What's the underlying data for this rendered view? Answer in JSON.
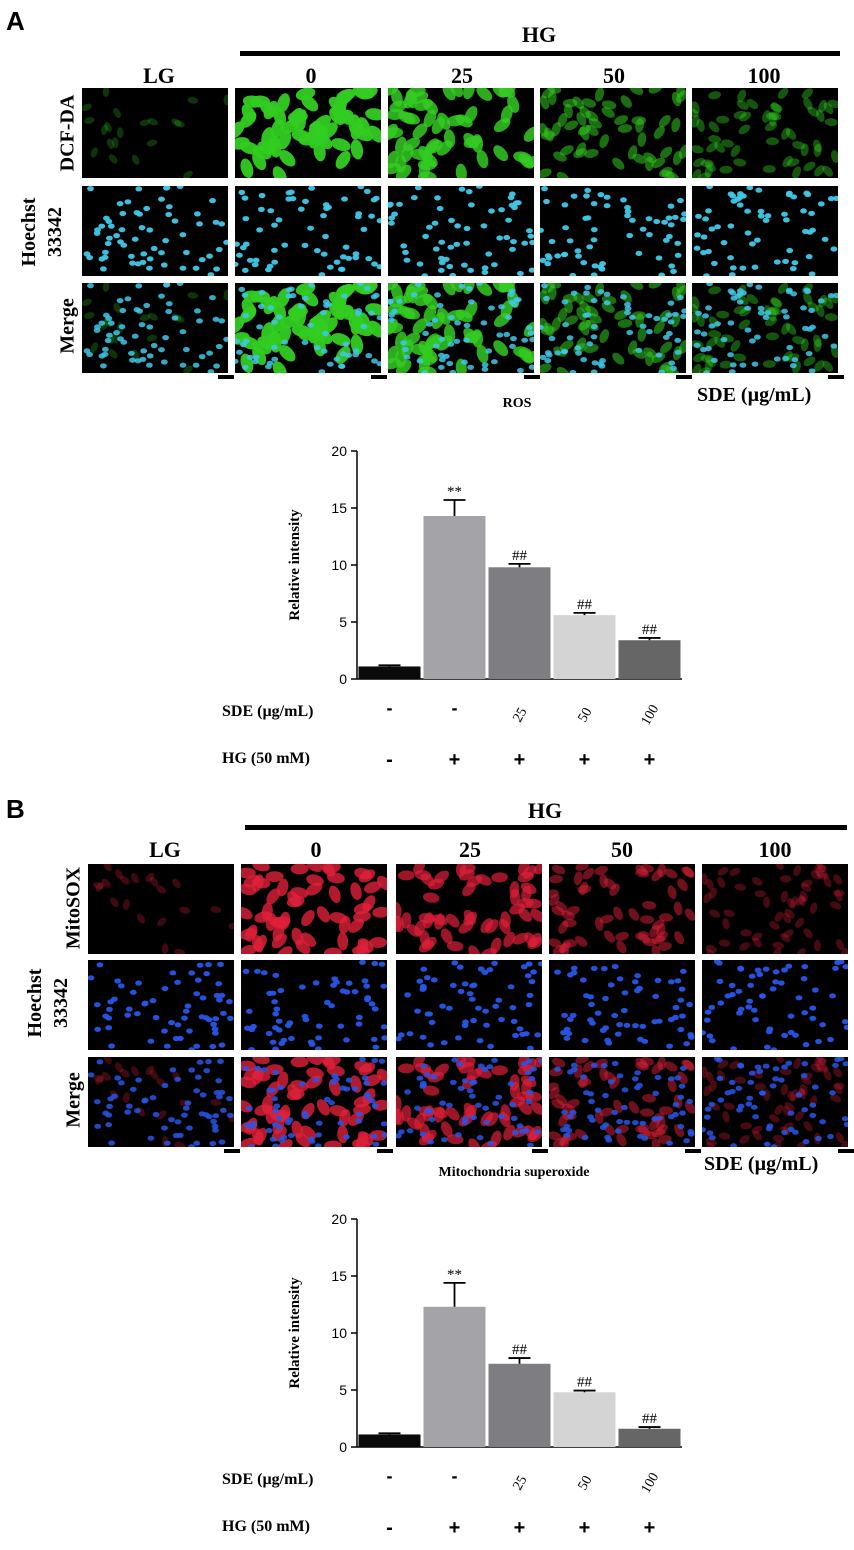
{
  "panels": [
    {
      "label": "A",
      "group_label": "HG",
      "columns": [
        "LG",
        "0",
        "25",
        "50",
        "100"
      ],
      "rows": [
        "DCF-DA",
        "Hoechst 33342",
        "Merge"
      ],
      "caption": "ROS",
      "sde_label": "SDE (µg/mL)",
      "stain_colors": {
        "probe": "#33cc22",
        "nucleus": "#3fc8e8"
      }
    },
    {
      "label": "B",
      "group_label": "HG",
      "columns": [
        "LG",
        "0",
        "25",
        "50",
        "100"
      ],
      "rows": [
        "MitoSOX",
        "Hoechst 33342",
        "Merge"
      ],
      "caption": "Mitochondria superoxide",
      "sde_label": "SDE (µg/mL)",
      "stain_colors": {
        "probe": "#e0203a",
        "nucleus": "#2855e8"
      }
    }
  ],
  "chart_data": [
    {
      "type": "bar",
      "title": "",
      "ylabel": "Relative intensity",
      "ylim": [
        0,
        20
      ],
      "yticks": [
        "0",
        "5",
        "10",
        "15",
        "20"
      ],
      "values": [
        1.1,
        14.3,
        9.8,
        5.6,
        3.4
      ],
      "errors": [
        0.1,
        1.4,
        0.3,
        0.2,
        0.2
      ],
      "annotations": [
        "",
        "**",
        "##",
        "##",
        "##"
      ],
      "colors": [
        "#0a0a0a",
        "#a3a3a8",
        "#7e7e82",
        "#d4d4d4",
        "#666666"
      ],
      "row_labels": [
        "SDE (µg/mL)",
        "HG (50 mM)"
      ],
      "sde_row": [
        "-",
        "-",
        "25",
        "50",
        "100"
      ],
      "hg_row": [
        "-",
        "+",
        "+",
        "+",
        "+"
      ]
    },
    {
      "type": "bar",
      "title": "",
      "ylabel": "Relative intensity",
      "ylim": [
        0,
        20
      ],
      "yticks": [
        "0",
        "5",
        "10",
        "15",
        "20"
      ],
      "values": [
        1.1,
        12.3,
        7.3,
        4.8,
        1.6
      ],
      "errors": [
        0.1,
        2.1,
        0.5,
        0.15,
        0.15
      ],
      "annotations": [
        "",
        "**",
        "##",
        "##",
        "##"
      ],
      "colors": [
        "#0a0a0a",
        "#a3a3a8",
        "#7e7e82",
        "#d4d4d4",
        "#666666"
      ],
      "row_labels": [
        "SDE (µg/mL)",
        "HG (50 mM)"
      ],
      "sde_row": [
        "-",
        "-",
        "25",
        "50",
        "100"
      ],
      "hg_row": [
        "-",
        "+",
        "+",
        "+",
        "+"
      ]
    }
  ]
}
